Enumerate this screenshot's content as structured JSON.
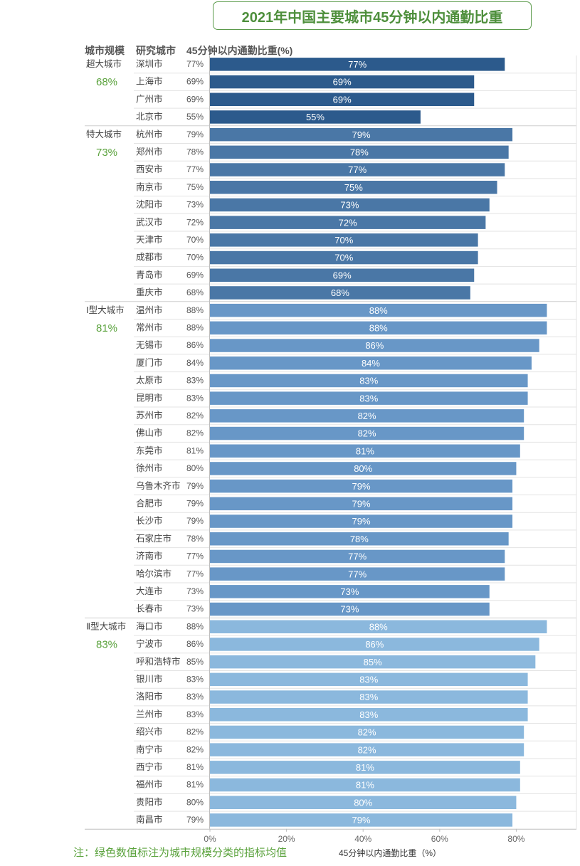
{
  "note": "注：绿色数值标注为城市规模分类的指标均值",
  "chart_data": {
    "type": "bar",
    "orientation": "horizontal",
    "title": "2021年中国主要城市45分钟以内通勤比重",
    "headers": [
      "城市规模",
      "研究城市",
      "45分钟以内通勤比重(%)"
    ],
    "xlabel": "45分钟以内通勤比重（%）",
    "xlim": [
      0,
      92
    ],
    "xticks": [
      0,
      20,
      40,
      60,
      80
    ],
    "xtick_labels": [
      "0%",
      "20%",
      "40%",
      "60%",
      "80%"
    ],
    "groups": [
      {
        "name": "超大城市",
        "avg": "68%",
        "color": "#2c5a8c",
        "cities": [
          "深圳市",
          "上海市",
          "广州市",
          "北京市"
        ],
        "values": [
          77,
          69,
          69,
          55
        ]
      },
      {
        "name": "特大城市",
        "avg": "73%",
        "color": "#4a77a6",
        "cities": [
          "杭州市",
          "郑州市",
          "西安市",
          "南京市",
          "沈阳市",
          "武汉市",
          "天津市",
          "成都市",
          "青岛市",
          "重庆市"
        ],
        "values": [
          79,
          78,
          77,
          75,
          73,
          72,
          70,
          70,
          69,
          68
        ]
      },
      {
        "name": "Ⅰ型大城市",
        "avg": "81%",
        "color": "#6897c7",
        "cities": [
          "温州市",
          "常州市",
          "无锡市",
          "厦门市",
          "太原市",
          "昆明市",
          "苏州市",
          "佛山市",
          "东莞市",
          "徐州市",
          "乌鲁木齐市",
          "合肥市",
          "长沙市",
          "石家庄市",
          "济南市",
          "哈尔滨市",
          "大连市",
          "长春市"
        ],
        "values": [
          88,
          88,
          86,
          84,
          83,
          83,
          82,
          82,
          81,
          80,
          79,
          79,
          79,
          78,
          77,
          77,
          73,
          73
        ]
      },
      {
        "name": "Ⅱ型大城市",
        "avg": "83%",
        "color": "#8bb8dd",
        "cities": [
          "海口市",
          "宁波市",
          "呼和浩特市",
          "银川市",
          "洛阳市",
          "兰州市",
          "绍兴市",
          "南宁市",
          "西宁市",
          "福州市",
          "贵阳市",
          "南昌市"
        ],
        "values": [
          88,
          86,
          85,
          83,
          83,
          83,
          82,
          82,
          81,
          81,
          80,
          79
        ]
      }
    ]
  }
}
